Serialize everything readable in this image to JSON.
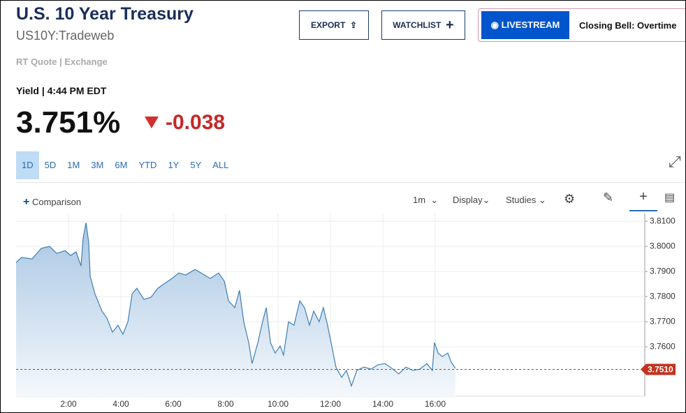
{
  "header": {
    "title": "U.S. 10 Year Treasury",
    "symbol": "US10Y:Tradeweb",
    "source": "RT Quote | Exchange",
    "quote_label": "Yield | 4:44 PM EDT",
    "price": "3.751%",
    "change": "-0.038",
    "buttons": [
      "EXPORT",
      "WATCHLIST"
    ],
    "livestream": "LIVESTREAM",
    "show": "Closing Bell: Overtime"
  },
  "ranges": [
    "1D",
    "5D",
    "1M",
    "3M",
    "6M",
    "YTD",
    "1Y",
    "5Y",
    "ALL"
  ],
  "toolbar": {
    "comparison": "Comparison",
    "interval": "1m",
    "display": "Display",
    "studies": "Studies"
  },
  "chart_data": {
    "type": "line",
    "color": "#3d7fb5",
    "grid": true,
    "x": [
      0.0,
      0.21,
      0.61,
      0.96,
      1.28,
      1.55,
      1.87,
      2.08,
      2.29,
      2.48,
      2.56,
      2.67,
      2.77,
      2.83,
      3.01,
      3.28,
      3.47,
      3.68,
      3.89,
      4.08,
      4.27,
      4.43,
      4.61,
      4.88,
      5.15,
      5.41,
      5.68,
      5.95,
      6.21,
      6.48,
      6.83,
      7.15,
      7.41,
      7.73,
      7.95,
      8.11,
      8.35,
      8.53,
      8.69,
      8.88,
      9.01,
      9.23,
      9.41,
      9.55,
      9.71,
      9.89,
      10.08,
      10.21,
      10.4,
      10.61,
      10.83,
      11.01,
      11.2,
      11.36,
      11.57,
      11.73,
      11.89,
      12.05,
      12.21,
      12.43,
      12.61,
      12.8,
      13.01,
      13.28,
      13.55,
      13.81,
      14.08,
      14.35,
      14.61,
      14.88,
      15.15,
      15.41,
      15.68,
      15.89,
      15.97,
      16.11,
      16.27,
      16.48,
      16.61,
      16.77
    ],
    "values": [
      3.7936,
      3.7956,
      3.795,
      3.7992,
      3.8,
      3.7972,
      3.7983,
      3.7964,
      3.7978,
      3.7922,
      3.8033,
      3.8094,
      3.8019,
      3.7881,
      3.7811,
      3.7742,
      3.7714,
      3.7658,
      3.7686,
      3.765,
      3.77,
      3.7811,
      3.7833,
      3.7789,
      3.7797,
      3.7833,
      3.7853,
      3.7872,
      3.7894,
      3.7886,
      3.7908,
      3.7889,
      3.7872,
      3.7894,
      3.7861,
      3.7783,
      3.7756,
      3.7825,
      3.77,
      3.7617,
      3.7533,
      3.7617,
      3.77,
      3.7756,
      3.7617,
      3.7575,
      3.7603,
      3.7567,
      3.77,
      3.7686,
      3.7783,
      3.7756,
      3.7686,
      3.7742,
      3.77,
      3.7756,
      3.7686,
      3.7603,
      3.7519,
      3.7478,
      3.7506,
      3.7444,
      3.7506,
      3.7519,
      3.7511,
      3.7528,
      3.7533,
      3.7514,
      3.7492,
      3.7519,
      3.7506,
      3.7511,
      3.7533,
      3.7506,
      3.7617,
      3.7575,
      3.7561,
      3.7575,
      3.7539,
      3.7514
    ],
    "last_value": {
      "value": 3.751,
      "label": "3.7510"
    },
    "last_color": "#c2321d",
    "xlim": [
      0,
      24
    ],
    "ylim": [
      3.7403,
      3.8131
    ],
    "xticks": [
      {
        "value": 2,
        "label": "2:00"
      },
      {
        "value": 4,
        "label": "4:00"
      },
      {
        "value": 6,
        "label": "6:00"
      },
      {
        "value": 8,
        "label": "8:00"
      },
      {
        "value": 10,
        "label": "10:00"
      },
      {
        "value": 12,
        "label": "12:00"
      },
      {
        "value": 14,
        "label": "14:00"
      },
      {
        "value": 16,
        "label": "16:00"
      }
    ],
    "yticks": [
      {
        "value": 3.81,
        "label": "3.8100"
      },
      {
        "value": 3.8,
        "label": "3.8000"
      },
      {
        "value": 3.79,
        "label": "3.7900"
      },
      {
        "value": 3.78,
        "label": "3.7800"
      },
      {
        "value": 3.77,
        "label": "3.7700"
      },
      {
        "value": 3.76,
        "label": "3.7600"
      }
    ]
  }
}
